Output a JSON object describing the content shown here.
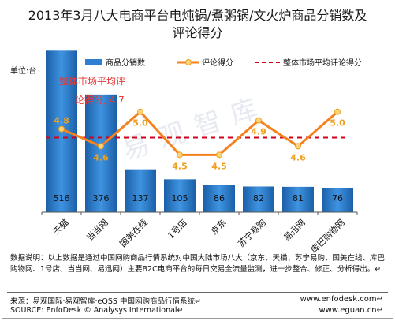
{
  "title_line1": "2013年3月八大电商平台电炖锅/煮粥锅/文火炉商品分销数及",
  "title_line2": "评论得分",
  "note": "数据说明：以上数据是通过中国网购商品行情系统对中国大陆市场八大（京东、天猫、苏宁易购、国美在线、库巴购物网、1号店、当当网、易迅网）主要B2C电商平台的每日交易全流量监测，进一步整合、修正、分析得出。↵",
  "footer": {
    "source_cn": "来源：易观国际·易观智库·eQSS 中国网购商品行情系统↵",
    "source_en": "SOURCE: EnfoDesk © Analysys International↵",
    "site1": "www.enfodesk.com↵",
    "site2": "www.eguan.cn↵"
  },
  "watermark": "易观智库",
  "chart_data": {
    "type": "bar",
    "categories": [
      "天猫",
      "当当网",
      "国美在线",
      "1号店",
      "京东",
      "苏宁易购",
      "易迅网",
      "库巴购物网"
    ],
    "unit_label": "单位:台",
    "series": [
      {
        "name": "商品分销数",
        "type": "bar",
        "values": [
          516,
          376,
          137,
          105,
          86,
          82,
          81,
          76
        ],
        "color": "#2e7fd3"
      },
      {
        "name": "评论得分",
        "type": "line",
        "values": [
          4.8,
          4.6,
          5.0,
          4.5,
          4.5,
          4.9,
          4.6,
          5.0
        ],
        "color": "#f58220",
        "label_color": "#f0a020"
      },
      {
        "name": "整体市场平均评论得分",
        "type": "dashed-line",
        "value": 4.7,
        "color": "#d0021b"
      }
    ],
    "annotation": {
      "line1": "整体市场平均评",
      "line2": "论得分, 4.7",
      "color": "#e53935"
    },
    "y_bar_range": [
      0,
      600
    ],
    "y_score_range": [
      4.0,
      5.4
    ],
    "legend_position": "top"
  }
}
